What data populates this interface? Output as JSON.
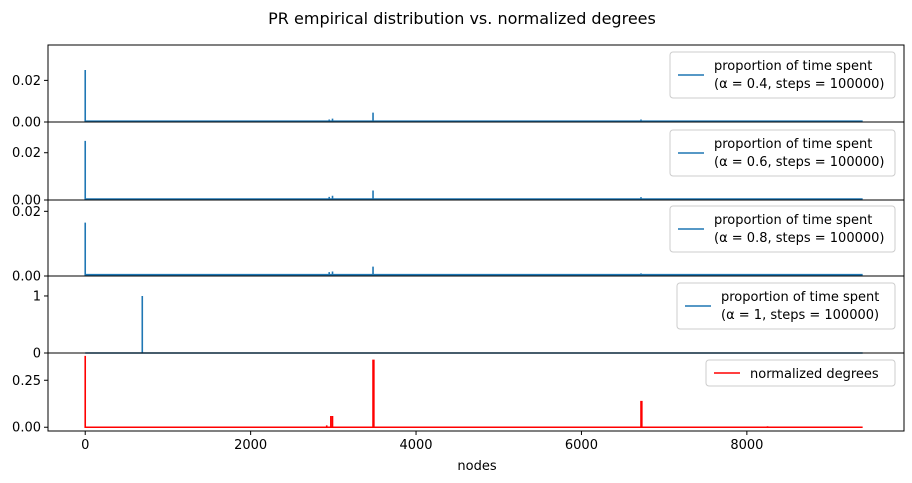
{
  "title": "PR empirical distribution vs. normalized degrees",
  "xlabel": "nodes",
  "x_ticks": [
    0,
    2000,
    4000,
    6000,
    8000
  ],
  "xlim": [
    -450,
    9900
  ],
  "n_nodes": 9400,
  "chart_data": [
    {
      "type": "line",
      "ylim": [
        0,
        0.037
      ],
      "y_ticks": [
        0.0,
        0.02
      ],
      "y_tick_labels": [
        "0.00",
        "0.02"
      ],
      "series": [
        {
          "name": "proportion of time spent",
          "color": "#1f77b4"
        }
      ],
      "legend_line1": "proportion of time spent",
      "legend_line2": "(α = 0.4, steps = 100000)",
      "legend_alpha": "0.4",
      "legend_steps": "100000",
      "baseline": 0.0004,
      "spikes": [
        [
          0,
          0.025
        ],
        [
          2950,
          0.0012
        ],
        [
          2990,
          0.0016
        ],
        [
          3480,
          0.0045
        ],
        [
          6720,
          0.0012
        ]
      ]
    },
    {
      "type": "line",
      "ylim": [
        0,
        0.033
      ],
      "y_ticks": [
        0.0,
        0.02
      ],
      "y_tick_labels": [
        "0.00",
        "0.02"
      ],
      "series": [
        {
          "name": "proportion of time spent",
          "color": "#1f77b4"
        }
      ],
      "legend_line1": "proportion of time spent",
      "legend_line2": "(α = 0.6, steps = 100000)",
      "legend_alpha": "0.6",
      "legend_steps": "100000",
      "baseline": 0.0004,
      "spikes": [
        [
          0,
          0.025
        ],
        [
          2950,
          0.0013
        ],
        [
          2990,
          0.0018
        ],
        [
          3480,
          0.004
        ],
        [
          6720,
          0.0012
        ]
      ]
    },
    {
      "type": "line",
      "ylim": [
        0,
        0.0235
      ],
      "y_ticks": [
        0.0,
        0.02
      ],
      "y_tick_labels": [
        "0.00",
        "0.02"
      ],
      "series": [
        {
          "name": "proportion of time spent",
          "color": "#1f77b4"
        }
      ],
      "legend_line1": "proportion of time spent",
      "legend_line2": "(α = 0.8, steps = 100000)",
      "legend_alpha": "0.8",
      "legend_steps": "100000",
      "baseline": 0.0004,
      "spikes": [
        [
          0,
          0.0165
        ],
        [
          2950,
          0.0012
        ],
        [
          2990,
          0.0014
        ],
        [
          3480,
          0.0029
        ],
        [
          6720,
          0.0008
        ]
      ]
    },
    {
      "type": "line",
      "ylim": [
        0,
        1.35
      ],
      "y_ticks": [
        0,
        1
      ],
      "y_tick_labels": [
        "0",
        "1"
      ],
      "series": [
        {
          "name": "proportion of time spent",
          "color": "#1f77b4"
        }
      ],
      "legend_line1": "proportion of time spent",
      "legend_line2": "(α = 1, steps = 100000)",
      "legend_alpha": "1",
      "legend_steps": "100000",
      "baseline": 0,
      "spikes": [
        [
          690,
          1.0
        ]
      ]
    },
    {
      "type": "line",
      "ylim": [
        -0.02,
        0.395
      ],
      "y_ticks": [
        0.0,
        0.25
      ],
      "y_tick_labels": [
        "0.00",
        "0.25"
      ],
      "series": [
        {
          "name": "normalized degrees",
          "color": "#ff0000"
        }
      ],
      "legend_line1": "normalized degrees",
      "baseline": 0.0,
      "spikes": [
        [
          0,
          0.38
        ],
        [
          2920,
          0.01
        ],
        [
          2970,
          0.06
        ],
        [
          2990,
          0.06
        ],
        [
          3480,
          0.36
        ],
        [
          3490,
          0.36
        ],
        [
          6720,
          0.14
        ],
        [
          6730,
          0.14
        ],
        [
          8250,
          0.005
        ]
      ]
    }
  ]
}
